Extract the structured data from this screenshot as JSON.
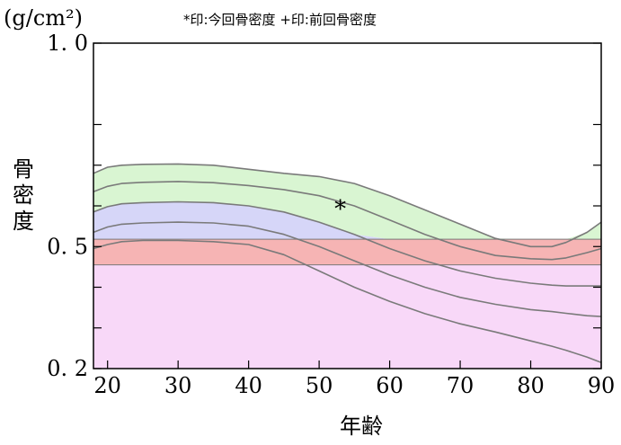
{
  "chart_data": {
    "type": "area",
    "unit_label": "(g/cm²)",
    "legend_note": "*印:今回骨密度 +印:前回骨密度",
    "ylabel": "骨密度",
    "xlabel": "年齢",
    "xlim": [
      18,
      90
    ],
    "ylim": [
      0.2,
      1.0
    ],
    "y_scale": "linear",
    "x_ticks": [
      20,
      30,
      40,
      50,
      60,
      70,
      80,
      90
    ],
    "y_ticks": [
      {
        "value": 1.0,
        "label": "1. 0"
      },
      {
        "value": 0.5,
        "label": "0. 5"
      },
      {
        "value": 0.2,
        "label": "0. 2"
      }
    ],
    "y_minor_ticks": [
      0.8,
      0.7,
      0.6,
      0.4,
      0.3
    ],
    "grid": false,
    "x": [
      18,
      20,
      22,
      25,
      30,
      35,
      40,
      45,
      50,
      55,
      60,
      65,
      70,
      75,
      80,
      83,
      85,
      88,
      90
    ],
    "series": [
      {
        "values": [
          0.68,
          0.695,
          0.7,
          0.702,
          0.703,
          0.7,
          0.69,
          0.68,
          0.672,
          0.655,
          0.625,
          0.59,
          0.555,
          0.52,
          0.5,
          0.5,
          0.51,
          0.535,
          0.56
        ]
      },
      {
        "values": [
          0.635,
          0.648,
          0.655,
          0.658,
          0.66,
          0.657,
          0.65,
          0.64,
          0.625,
          0.6,
          0.565,
          0.53,
          0.5,
          0.478,
          0.47,
          0.468,
          0.472,
          0.485,
          0.495
        ]
      },
      {
        "values": [
          0.585,
          0.598,
          0.605,
          0.608,
          0.61,
          0.608,
          0.6,
          0.585,
          0.56,
          0.53,
          0.495,
          0.465,
          0.44,
          0.422,
          0.41,
          0.405,
          0.403,
          0.403,
          0.403
        ]
      },
      {
        "values": [
          0.535,
          0.548,
          0.555,
          0.558,
          0.56,
          0.558,
          0.55,
          0.53,
          0.5,
          0.465,
          0.43,
          0.4,
          0.375,
          0.358,
          0.345,
          0.34,
          0.336,
          0.33,
          0.328
        ]
      },
      {
        "values": [
          0.495,
          0.505,
          0.512,
          0.515,
          0.515,
          0.512,
          0.505,
          0.48,
          0.44,
          0.4,
          0.365,
          0.335,
          0.31,
          0.29,
          0.268,
          0.255,
          0.245,
          0.228,
          0.215
        ]
      }
    ],
    "reference_band": {
      "from": 0.455,
      "to": 0.518
    },
    "markers": [
      {
        "symbol": "*",
        "x": 53,
        "y": 0.596
      }
    ],
    "colors": {
      "green_band": "#d9f5d2",
      "blue_band": "#d6d6f8",
      "yellow_band": "#fbf7d6",
      "red_band": "#f6b4b4",
      "pink_region": "#f8d8f8",
      "curve": "#7a7a7a"
    }
  }
}
